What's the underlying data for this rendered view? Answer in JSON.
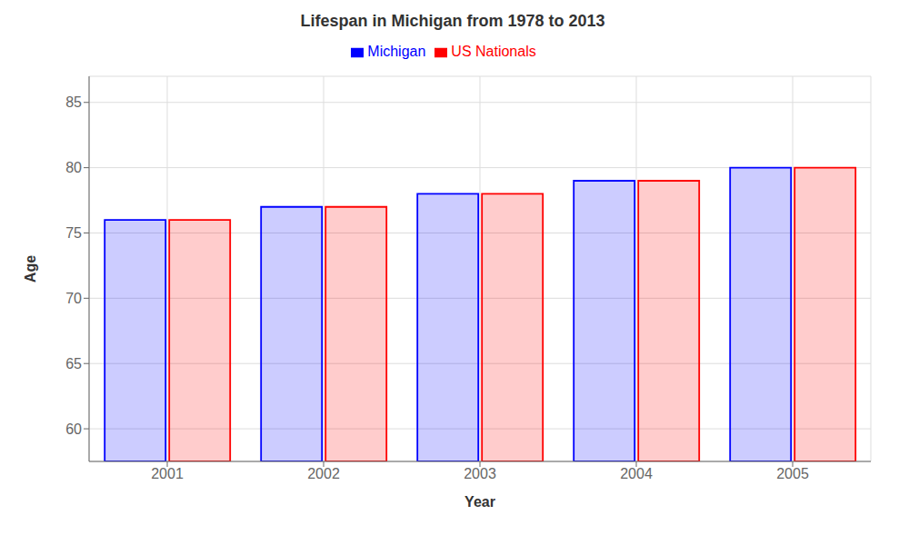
{
  "chart_data": {
    "type": "bar",
    "title": "Lifespan in Michigan from 1978 to 2013",
    "x_label": "Year",
    "y_label": "Age",
    "categories": [
      2001,
      2002,
      2003,
      2004,
      2005
    ],
    "series": [
      {
        "name": "Michigan",
        "color": "#0000ff",
        "values": [
          76,
          77,
          78,
          79,
          80
        ]
      },
      {
        "name": "US Nationals",
        "color": "#ff0000",
        "values": [
          76,
          77,
          78,
          79,
          80
        ]
      }
    ],
    "ylim": [
      57.5,
      87
    ],
    "yticks": [
      60,
      65,
      70,
      75,
      80,
      85
    ],
    "grid": true,
    "legend": "top"
  }
}
